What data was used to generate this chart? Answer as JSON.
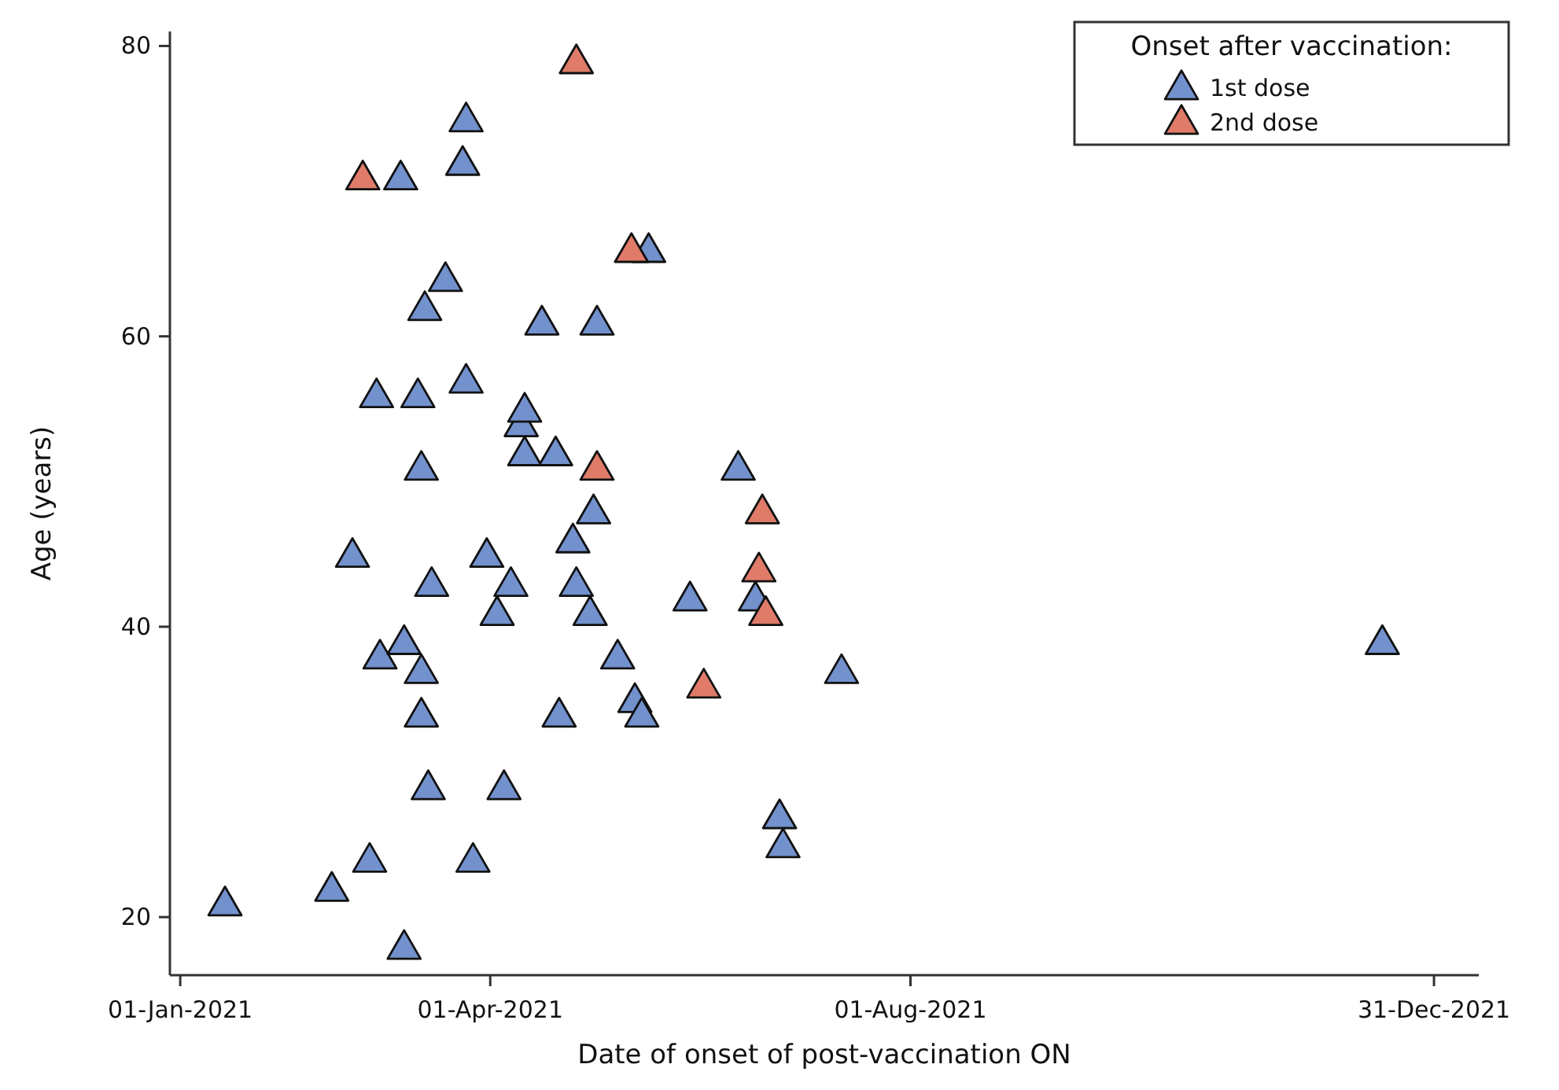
{
  "chart_data": {
    "type": "scatter",
    "xlabel": "Date of onset of post-vaccination ON",
    "ylabel": "Age (years)",
    "legend_title": "Onset after vaccination:",
    "legend": "top right",
    "marker": "triangle",
    "grid": false,
    "xlim": [
      "2020-12-29",
      "2022-01-13"
    ],
    "xticks": [
      {
        "value": "2021-01-01",
        "label": "01-Jan-2021"
      },
      {
        "value": "2021-04-01",
        "label": "01-Apr-2021"
      },
      {
        "value": "2021-08-01",
        "label": "01-Aug-2021"
      },
      {
        "value": "2021-12-31",
        "label": "31-Dec-2021"
      }
    ],
    "ylim": [
      16,
      81
    ],
    "yticks": [
      20,
      40,
      60,
      80
    ],
    "series": [
      {
        "name": "1st dose",
        "color": "#7391cd",
        "x": [
          "2021-01-14",
          "2021-02-14",
          "2021-02-25",
          "2021-02-20",
          "2021-02-28",
          "2021-03-06",
          "2021-03-07",
          "2021-03-07",
          "2021-02-27",
          "2021-03-11",
          "2021-03-12",
          "2021-03-13",
          "2021-03-12",
          "2021-03-12",
          "2021-03-14",
          "2021-03-15",
          "2021-03-19",
          "2021-03-24",
          "2021-03-25",
          "2021-03-25",
          "2021-03-27",
          "2021-03-31",
          "2021-04-03",
          "2021-04-05",
          "2021-04-07",
          "2021-04-10",
          "2021-04-11",
          "2021-04-11",
          "2021-04-16",
          "2021-04-20",
          "2021-04-21",
          "2021-04-25",
          "2021-04-26",
          "2021-04-30",
          "2021-05-01",
          "2021-05-02",
          "2021-05-08",
          "2021-05-13",
          "2021-05-15",
          "2021-05-17",
          "2021-05-29",
          "2021-06-12",
          "2021-06-17",
          "2021-06-24",
          "2021-06-25",
          "2021-07-12",
          "2021-12-16"
        ],
        "values": [
          21,
          22,
          24,
          45,
          38,
          71,
          39,
          18,
          56,
          56,
          51,
          62,
          37,
          34,
          29,
          43,
          64,
          72,
          75,
          57,
          24,
          45,
          41,
          29,
          43,
          54,
          55,
          52,
          61,
          52,
          34,
          46,
          43,
          41,
          48,
          61,
          38,
          35,
          34,
          66,
          42,
          51,
          42,
          27,
          25,
          37,
          39
        ]
      },
      {
        "name": "2nd dose",
        "color": "#e07b6a",
        "x": [
          "2021-02-23",
          "2021-04-26",
          "2021-05-12",
          "2021-05-02",
          "2021-06-02",
          "2021-06-19",
          "2021-06-18",
          "2021-06-20"
        ],
        "values": [
          71,
          79,
          66,
          51,
          36,
          48,
          44,
          41
        ]
      }
    ]
  }
}
